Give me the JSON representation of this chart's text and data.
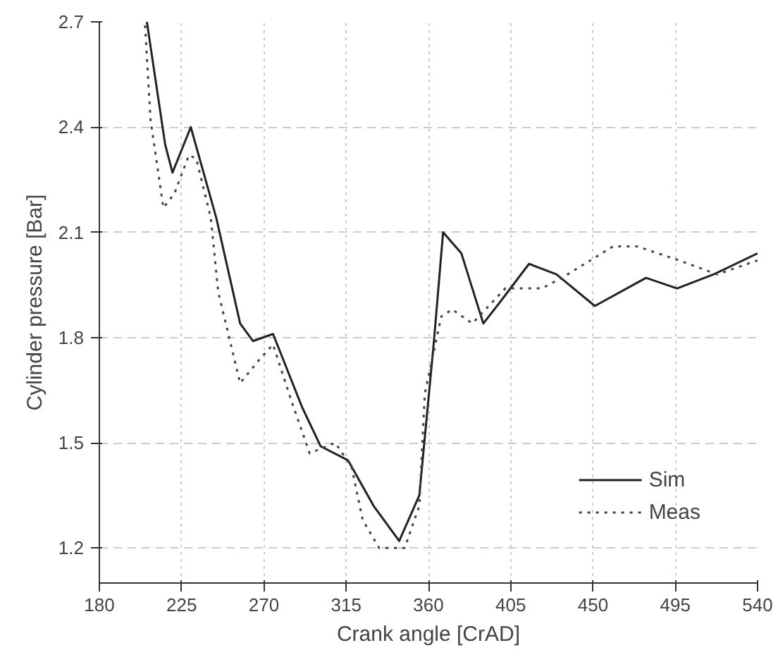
{
  "chart_data": {
    "type": "line",
    "xlabel": "Crank angle [CrAD]",
    "ylabel": "Cylinder pressure [Bar]",
    "xlim": [
      180,
      540
    ],
    "ylim": [
      1.1,
      2.7
    ],
    "xticks": [
      180,
      225,
      270,
      315,
      360,
      405,
      450,
      495,
      540
    ],
    "yticks": [
      1.2,
      1.5,
      1.8,
      2.1,
      2.4,
      2.7
    ],
    "grid": true,
    "legend": "bottom right",
    "series": [
      {
        "name": "Sim",
        "color": "#222222",
        "line_style": "solid",
        "x": [
          206,
          216,
          220,
          230,
          244,
          257,
          264,
          275,
          291,
          301,
          316,
          330,
          344,
          355,
          363,
          368,
          378,
          390,
          399,
          415,
          430,
          451,
          479,
          496,
          516,
          540
        ],
        "values": [
          2.7,
          2.35,
          2.27,
          2.4,
          2.14,
          1.84,
          1.79,
          1.81,
          1.6,
          1.49,
          1.45,
          1.32,
          1.22,
          1.35,
          1.79,
          2.1,
          2.04,
          1.84,
          1.9,
          2.01,
          1.98,
          1.89,
          1.97,
          1.94,
          1.98,
          2.04
        ]
      },
      {
        "name": "Meas",
        "color": "#444444",
        "line_style": "dotted",
        "x": [
          205,
          208,
          215,
          221,
          229,
          233,
          241,
          245,
          257,
          268,
          275,
          285,
          295,
          309,
          318,
          324,
          333,
          347,
          355,
          358,
          367,
          373,
          384,
          402,
          422,
          433,
          461,
          474,
          497,
          518,
          540
        ],
        "values": [
          2.69,
          2.42,
          2.17,
          2.21,
          2.32,
          2.31,
          2.14,
          1.93,
          1.67,
          1.74,
          1.78,
          1.62,
          1.47,
          1.5,
          1.43,
          1.28,
          1.2,
          1.2,
          1.32,
          1.64,
          1.86,
          1.88,
          1.84,
          1.94,
          1.94,
          1.97,
          2.06,
          2.06,
          2.02,
          1.98,
          2.02
        ]
      }
    ]
  }
}
